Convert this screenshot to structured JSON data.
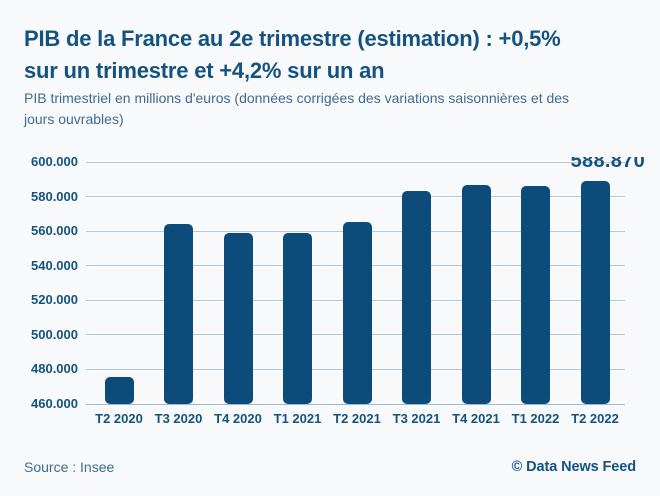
{
  "colors": {
    "background": "#F8F9FA",
    "text_dark": "#14537F",
    "text_muted": "#3E6C92",
    "bar": "#0C4B7A",
    "gridline": "#B5C9DB",
    "baseline": "#9FBBD1"
  },
  "header": {
    "title_line1": "PIB de la France au 2e trimestre (estimation) : +0,5%",
    "title_line2": "sur un trimestre et +4,2% sur un an",
    "subtitle_line1": "PIB trimestriel en millions d'euros (données corrigées des variations saisonnières et des",
    "subtitle_line2": "jours ouvrables)"
  },
  "chart_data": {
    "type": "bar",
    "title": "PIB de la France au 2e trimestre (estimation) : +0,5% sur un trimestre et +4,2% sur un an",
    "subtitle": "PIB trimestriel en millions d'euros (données corrigées des variations saisonnières et des jours ouvrables)",
    "categories": [
      "T2 2020",
      "T3 2020",
      "T4 2020",
      "T1 2021",
      "T2 2021",
      "T3 2021",
      "T4 2021",
      "T1 2022",
      "T2 2022"
    ],
    "values": [
      475700,
      563900,
      558800,
      559000,
      565100,
      583500,
      587000,
      585900,
      588870
    ],
    "unit": "millions d'euros",
    "ylim": [
      460000,
      600000
    ],
    "y_ticks": [
      "600.000",
      "580.000",
      "560.000",
      "540.000",
      "520.000",
      "500.000",
      "480.000",
      "460.000"
    ],
    "grid": true,
    "legend": null,
    "annotation": {
      "category": "T2 2022",
      "label": "588.870"
    }
  },
  "footer": {
    "source": "Source : Insee",
    "copyright": "© Data News Feed"
  }
}
